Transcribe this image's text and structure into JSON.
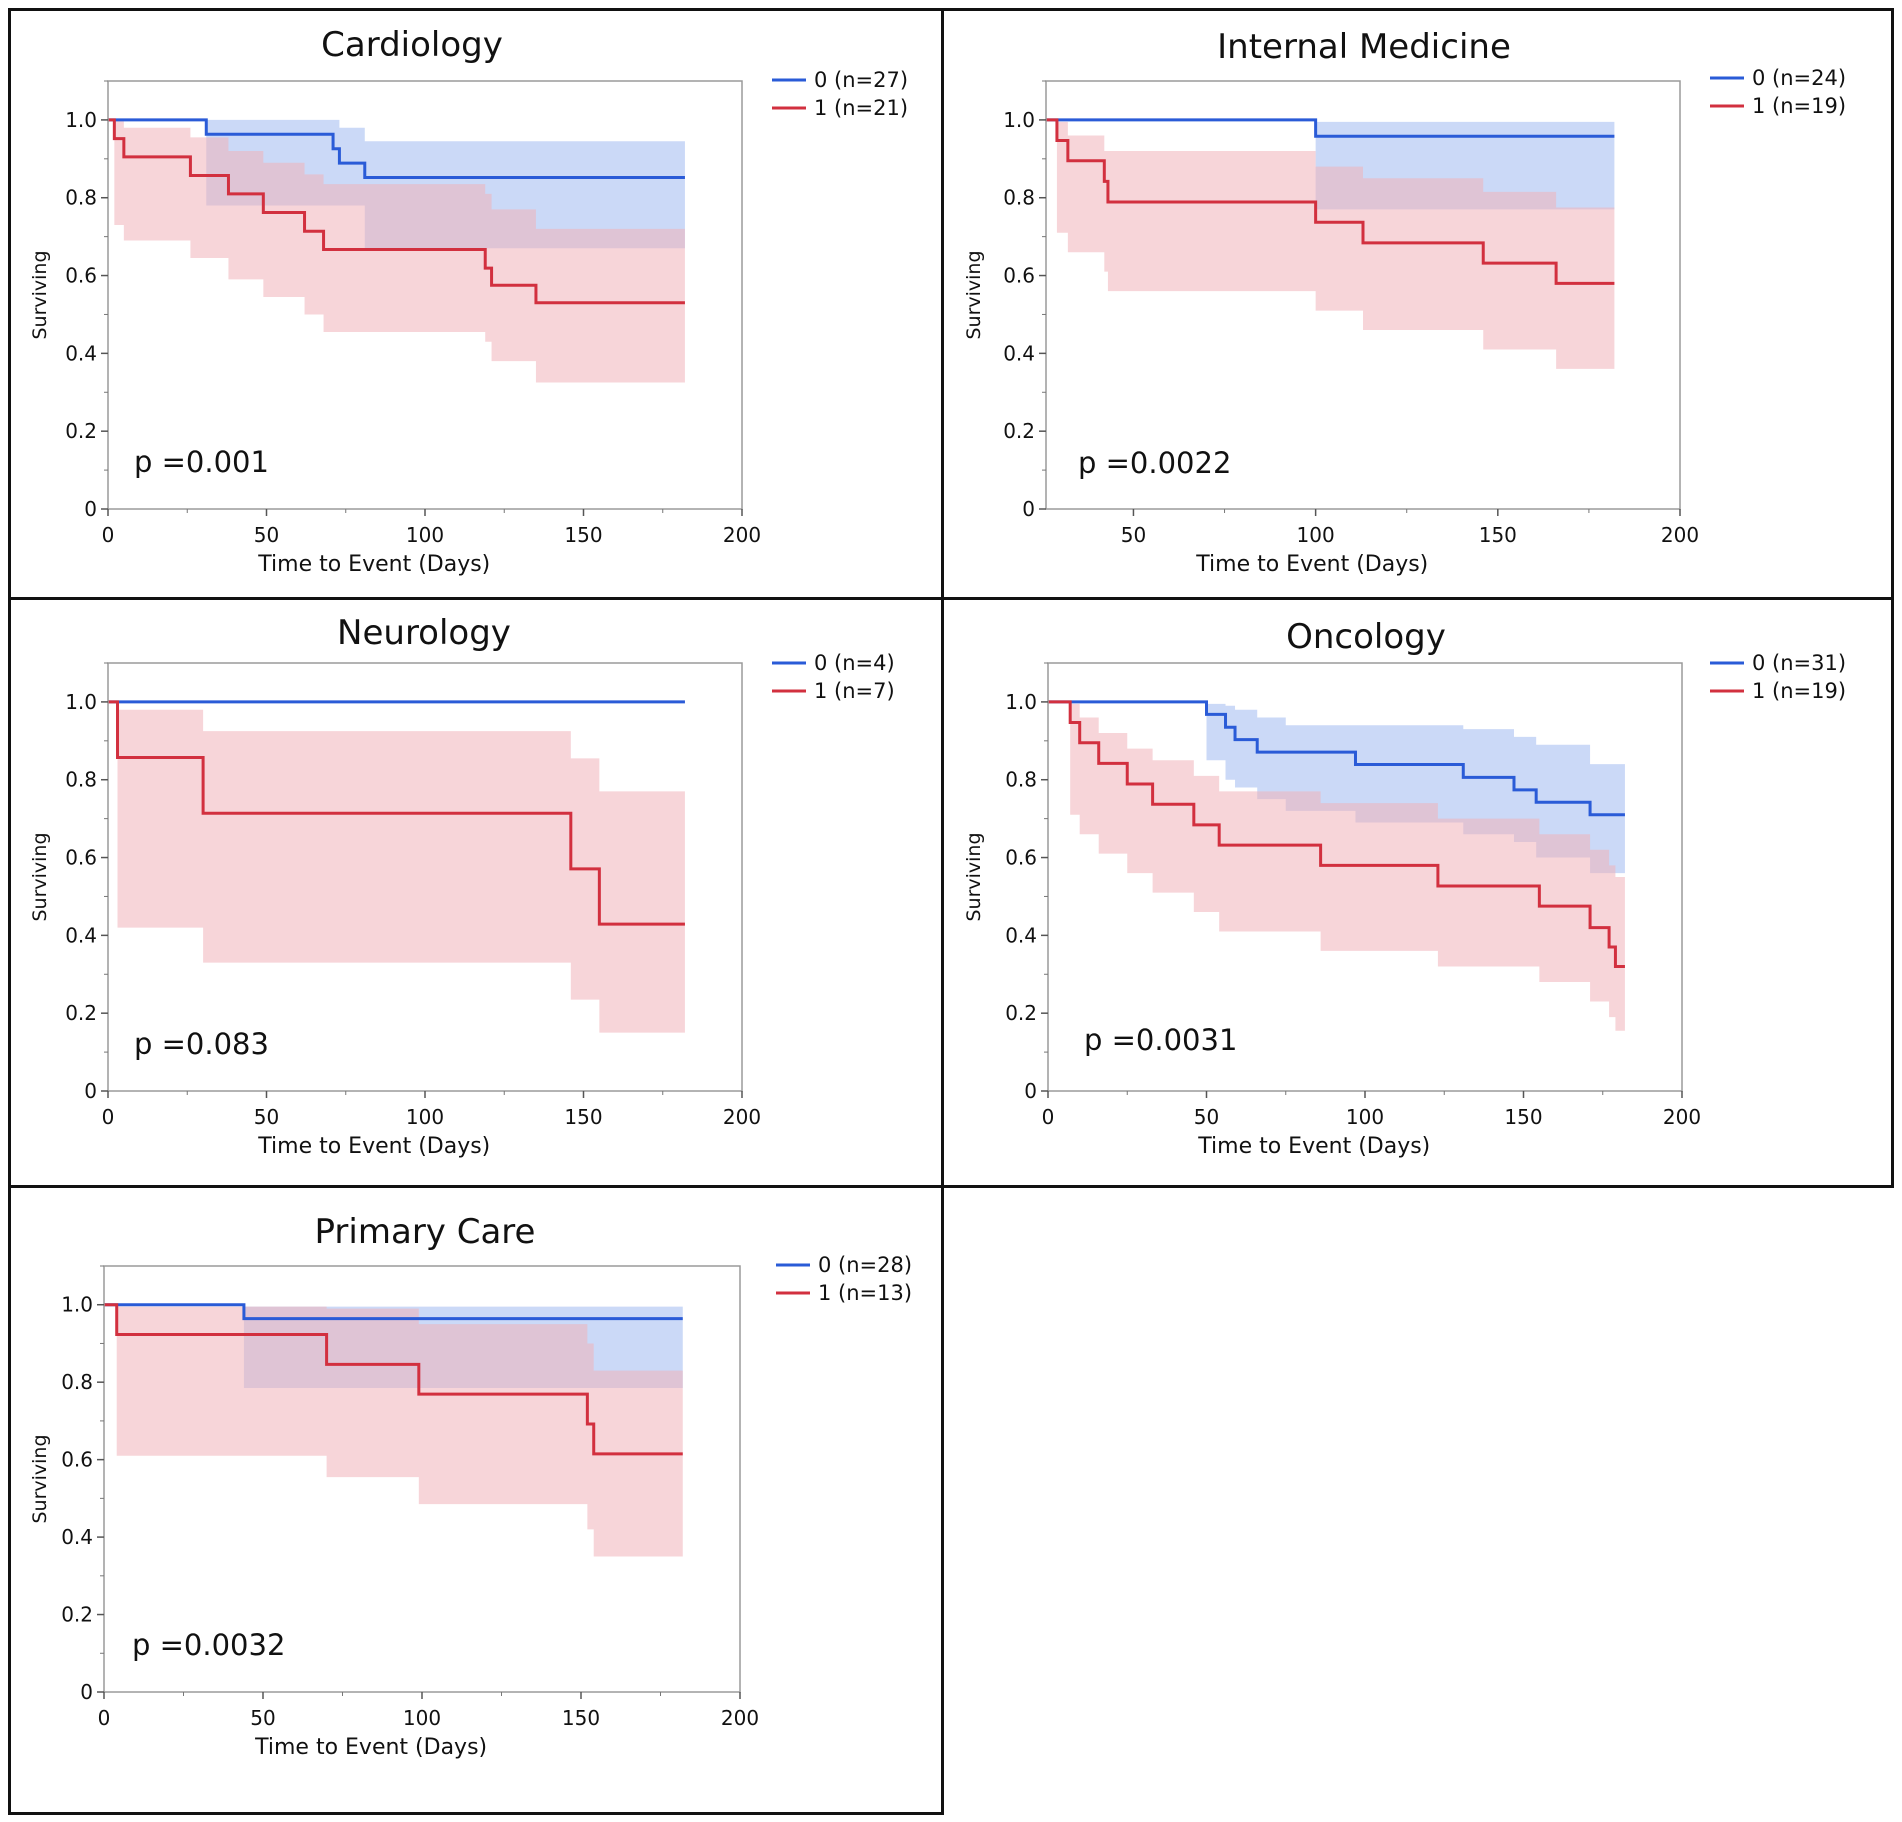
{
  "colors": {
    "group0": "#2a5bd7",
    "group1": "#d2303f",
    "band0": "#a9bff2",
    "band1": "#f0b3ba",
    "frame": "#111111"
  },
  "axis": {
    "ylabel": "Surviving",
    "xlabel": "Time to Event (Days)"
  },
  "chart_data": [
    {
      "type": "line",
      "title": "Cardiology",
      "p_value": "p =0.001",
      "xlim": [
        0,
        200
      ],
      "ylim": [
        0,
        1.1
      ],
      "xticks": [
        "0",
        "50",
        "100",
        "150",
        "200"
      ],
      "xtick_values": [
        0,
        50,
        100,
        150,
        200
      ],
      "yticks": [
        "0",
        "0.2",
        "0.4",
        "0.6",
        "0.8",
        "1.0"
      ],
      "ytick_values": [
        0,
        0.2,
        0.4,
        0.6,
        0.8,
        1.0
      ],
      "series": [
        {
          "name": "0 (n=27)",
          "group": 0,
          "x": [
            0,
            31,
            71,
            73,
            81,
            182
          ],
          "y": [
            1.0,
            0.963,
            0.926,
            0.889,
            0.852,
            0.852
          ],
          "lower": [
            1.0,
            0.78,
            0.78,
            0.78,
            0.67,
            0.67
          ],
          "upper": [
            1.0,
            1.0,
            1.0,
            0.98,
            0.945,
            0.945
          ]
        },
        {
          "name": "1 (n=21)",
          "group": 1,
          "x": [
            0,
            2,
            5,
            26,
            38,
            49,
            62,
            68,
            119,
            121,
            135,
            182
          ],
          "y": [
            1.0,
            0.952,
            0.905,
            0.857,
            0.81,
            0.762,
            0.714,
            0.667,
            0.619,
            0.575,
            0.53,
            0.53
          ],
          "lower": [
            1.0,
            0.73,
            0.69,
            0.645,
            0.59,
            0.545,
            0.5,
            0.455,
            0.43,
            0.38,
            0.325,
            0.325
          ],
          "upper": [
            1.0,
            1.0,
            0.98,
            0.955,
            0.92,
            0.89,
            0.86,
            0.835,
            0.81,
            0.77,
            0.72,
            0.72
          ]
        }
      ]
    },
    {
      "type": "line",
      "title": "Internal Medicine",
      "p_value": "p =0.0022",
      "xlim": [
        26,
        200
      ],
      "ylim": [
        0,
        1.1
      ],
      "xticks": [
        "50",
        "100",
        "150",
        "200"
      ],
      "xtick_values": [
        50,
        100,
        150,
        200
      ],
      "yticks": [
        "0",
        "0.2",
        "0.4",
        "0.6",
        "0.8",
        "1.0"
      ],
      "ytick_values": [
        0,
        0.2,
        0.4,
        0.6,
        0.8,
        1.0
      ],
      "series": [
        {
          "name": "0 (n=24)",
          "group": 0,
          "x": [
            26,
            100,
            182
          ],
          "y": [
            1.0,
            0.958,
            0.958
          ],
          "lower": [
            1.0,
            0.77,
            0.77
          ],
          "upper": [
            1.0,
            0.995,
            0.995
          ]
        },
        {
          "name": "1 (n=19)",
          "group": 1,
          "x": [
            26,
            29,
            32,
            42,
            43,
            100,
            113,
            146,
            166,
            182
          ],
          "y": [
            1.0,
            0.947,
            0.895,
            0.842,
            0.789,
            0.737,
            0.684,
            0.632,
            0.58,
            0.58
          ],
          "lower": [
            1.0,
            0.71,
            0.66,
            0.61,
            0.56,
            0.51,
            0.46,
            0.41,
            0.36,
            0.36
          ],
          "upper": [
            1.0,
            0.995,
            0.96,
            0.92,
            0.92,
            0.88,
            0.85,
            0.815,
            0.775,
            0.775
          ]
        }
      ]
    },
    {
      "type": "line",
      "title": "Neurology",
      "p_value": "p =0.083",
      "xlim": [
        0,
        200
      ],
      "ylim": [
        0,
        1.1
      ],
      "xticks": [
        "0",
        "50",
        "100",
        "150",
        "200"
      ],
      "xtick_values": [
        0,
        50,
        100,
        150,
        200
      ],
      "yticks": [
        "0",
        "0.2",
        "0.4",
        "0.6",
        "0.8",
        "1.0"
      ],
      "ytick_values": [
        0,
        0.2,
        0.4,
        0.6,
        0.8,
        1.0
      ],
      "series": [
        {
          "name": "0 (n=4)",
          "group": 0,
          "x": [
            0,
            182
          ],
          "y": [
            1.0,
            1.0
          ],
          "lower": [
            1.0,
            1.0
          ],
          "upper": [
            1.0,
            1.0
          ]
        },
        {
          "name": "1 (n=7)",
          "group": 1,
          "x": [
            0,
            3,
            30,
            146,
            155,
            182
          ],
          "y": [
            1.0,
            0.857,
            0.714,
            0.571,
            0.429,
            0.429
          ],
          "lower": [
            1.0,
            0.42,
            0.33,
            0.235,
            0.15,
            0.15
          ],
          "upper": [
            1.0,
            0.98,
            0.925,
            0.855,
            0.77,
            0.77
          ]
        }
      ]
    },
    {
      "type": "line",
      "title": "Oncology",
      "p_value": "p =0.0031",
      "xlim": [
        0,
        200
      ],
      "ylim": [
        0,
        1.1
      ],
      "xticks": [
        "0",
        "50",
        "100",
        "150",
        "200"
      ],
      "xtick_values": [
        0,
        50,
        100,
        150,
        200
      ],
      "yticks": [
        "0",
        "0.2",
        "0.4",
        "0.6",
        "0.8",
        "1.0"
      ],
      "ytick_values": [
        0,
        0.2,
        0.4,
        0.6,
        0.8,
        1.0
      ],
      "series": [
        {
          "name": "0 (n=31)",
          "group": 0,
          "x": [
            0,
            50,
            56,
            59,
            66,
            75,
            97,
            131,
            147,
            154,
            171,
            182
          ],
          "y": [
            1.0,
            0.968,
            0.935,
            0.903,
            0.871,
            0.871,
            0.839,
            0.806,
            0.774,
            0.742,
            0.71,
            0.71
          ],
          "lower": [
            1.0,
            0.85,
            0.8,
            0.78,
            0.75,
            0.72,
            0.69,
            0.66,
            0.64,
            0.6,
            0.56,
            0.55
          ],
          "upper": [
            1.0,
            0.995,
            0.99,
            0.98,
            0.96,
            0.94,
            0.94,
            0.93,
            0.91,
            0.89,
            0.84,
            0.84
          ]
        },
        {
          "name": "1 (n=19)",
          "group": 1,
          "x": [
            0,
            7,
            10,
            16,
            25,
            33,
            46,
            54,
            86,
            123,
            155,
            171,
            177,
            179,
            182
          ],
          "y": [
            1.0,
            0.947,
            0.895,
            0.842,
            0.789,
            0.737,
            0.684,
            0.632,
            0.58,
            0.527,
            0.475,
            0.42,
            0.37,
            0.32,
            0.32
          ],
          "lower": [
            1.0,
            0.71,
            0.66,
            0.61,
            0.56,
            0.51,
            0.46,
            0.41,
            0.36,
            0.32,
            0.28,
            0.23,
            0.19,
            0.155,
            0.155
          ],
          "upper": [
            1.0,
            0.995,
            0.96,
            0.92,
            0.88,
            0.85,
            0.81,
            0.77,
            0.74,
            0.7,
            0.66,
            0.62,
            0.58,
            0.55,
            0.55
          ]
        }
      ]
    },
    {
      "type": "line",
      "title": "Primary Care",
      "p_value": "p =0.0032",
      "xlim": [
        0,
        200
      ],
      "ylim": [
        0,
        1.1
      ],
      "xticks": [
        "0",
        "50",
        "100",
        "150",
        "200"
      ],
      "xtick_values": [
        0,
        50,
        100,
        150,
        200
      ],
      "yticks": [
        "0",
        "0.2",
        "0.4",
        "0.6",
        "0.8",
        "1.0"
      ],
      "ytick_values": [
        0,
        0.2,
        0.4,
        0.6,
        0.8,
        1.0
      ],
      "series": [
        {
          "name": "0 (n=28)",
          "group": 0,
          "x": [
            0,
            44,
            182
          ],
          "y": [
            1.0,
            0.964,
            0.964
          ],
          "lower": [
            1.0,
            0.785,
            0.785
          ],
          "upper": [
            1.0,
            0.995,
            0.995
          ]
        },
        {
          "name": "1 (n=13)",
          "group": 1,
          "x": [
            0,
            4,
            70,
            99,
            152,
            154,
            182
          ],
          "y": [
            1.0,
            0.923,
            0.846,
            0.769,
            0.692,
            0.615,
            0.615
          ],
          "lower": [
            1.0,
            0.61,
            0.555,
            0.485,
            0.42,
            0.35,
            0.35
          ],
          "upper": [
            1.0,
            0.995,
            0.99,
            0.95,
            0.9,
            0.83,
            0.83
          ]
        }
      ]
    }
  ]
}
